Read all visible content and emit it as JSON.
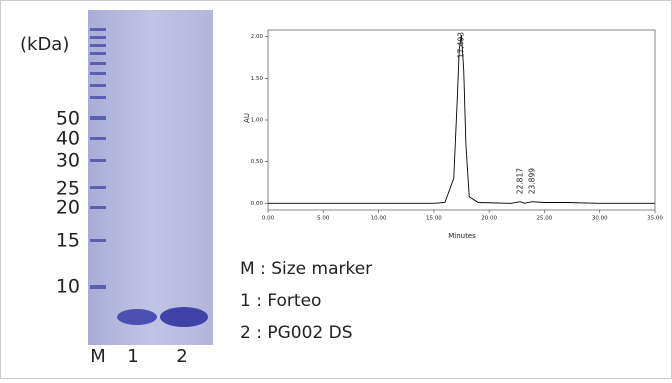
{
  "gel": {
    "unit_label": "(kDa)",
    "marker_labels": [
      "50",
      "40",
      "30",
      "25",
      "20",
      "15",
      "10"
    ],
    "lane_labels": [
      "M",
      "1",
      "2"
    ]
  },
  "chart_data": {
    "type": "line",
    "x_label": "Minutes",
    "y_label": "AU",
    "x": [
      0,
      15,
      16,
      16.8,
      17.1,
      17.3,
      17.493,
      17.7,
      17.9,
      18.2,
      19,
      22,
      22.817,
      23.2,
      23.899,
      25,
      27,
      30,
      35
    ],
    "series": [
      {
        "color": "#000000",
        "values": [
          0,
          0,
          0.01,
          0.3,
          1.2,
          1.85,
          2.02,
          1.6,
          0.7,
          0.08,
          0.01,
          0,
          0.02,
          0,
          0.02,
          0.01,
          0.01,
          0,
          0
        ]
      }
    ],
    "peaks": {
      "x": [
        17.493,
        22.817,
        23.899
      ],
      "labels": [
        "17.493",
        "22.817",
        "23.899"
      ]
    },
    "xlim": [
      0,
      35
    ],
    "ylim": [
      -0.08,
      2.08
    ],
    "xticks": [
      {
        "value": 0,
        "label": "0.00"
      },
      {
        "value": 5,
        "label": "5.00"
      },
      {
        "value": 10,
        "label": "10.00"
      },
      {
        "value": 15,
        "label": "15.00"
      },
      {
        "value": 20,
        "label": "20.00"
      },
      {
        "value": 25,
        "label": "25.00"
      },
      {
        "value": 30,
        "label": "30.00"
      },
      {
        "value": 35,
        "label": "35.00"
      }
    ],
    "yticks": [
      {
        "value": 0,
        "label": "0.00"
      },
      {
        "value": 0.5,
        "label": "0.50"
      },
      {
        "value": 1,
        "label": "1.00"
      },
      {
        "value": 1.5,
        "label": "1.50"
      },
      {
        "value": 2,
        "label": "2.00"
      }
    ]
  },
  "legend": [
    "M : Size marker",
    "1 : Forteo",
    "2 : PG002 DS"
  ]
}
